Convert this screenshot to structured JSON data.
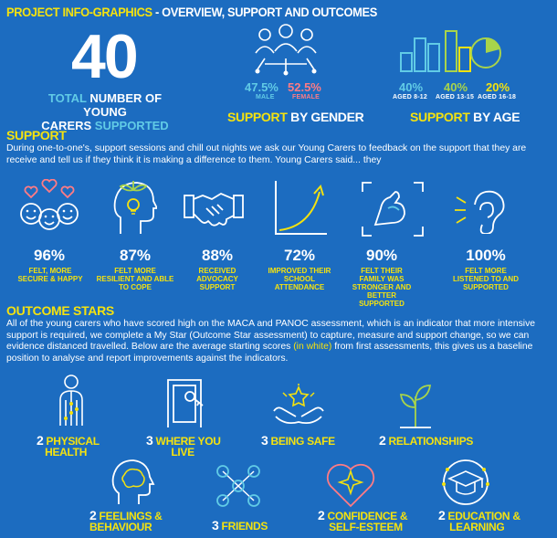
{
  "header": {
    "title_part1": "PROJECT INFO-GRAPHICS",
    "title_part2": " - OVERVIEW, SUPPORT AND OUTCOMES"
  },
  "total": {
    "number": "40",
    "word_total": "TOTAL",
    "line1_rest": " NUMBER OF YOUNG",
    "line2_a": "CARERS ",
    "line2_b": "SUPPORTED"
  },
  "gender": {
    "male_pct": "47.5%",
    "male_label": "MALE",
    "female_pct": "52.5%",
    "female_label": "FEMALE",
    "title_a": "SUPPORT ",
    "title_b": "BY GENDER"
  },
  "age": {
    "groups": [
      {
        "pct": "40%",
        "label": "AGED 8-12"
      },
      {
        "pct": "40%",
        "label": "AGED 13-15"
      },
      {
        "pct": "20%",
        "label": "AGED 16-18"
      }
    ],
    "title_a": "SUPPORT ",
    "title_b": "BY AGE"
  },
  "support": {
    "title": "SUPPORT",
    "para": "During one-to-one's, support sessions and chill out nights we ask our Young Carers to feedback on the support that they are receive and tell us if they think it is making a difference to them. Young Carers said... they",
    "stats": [
      {
        "pct": "96%",
        "label": "FELT, MORE SECURE & HAPPY",
        "icon": "smiley-faces-icon"
      },
      {
        "pct": "87%",
        "label": "FELT MORE RESILIENT AND ABLE TO COPE",
        "icon": "head-plant-icon"
      },
      {
        "pct": "88%",
        "label": "RECEIVED ADVOCACY SUPPORT",
        "icon": "handshake-icon"
      },
      {
        "pct": "72%",
        "label": "IMPROVED THEIR SCHOOL ATTENDANCE",
        "icon": "growth-curve-icon"
      },
      {
        "pct": "90%",
        "label": "FELT THEIR FAMILY WAS STRONGER AND BETTER SUPPORTED",
        "icon": "flexed-arm-icon"
      },
      {
        "pct": "100%",
        "label": "FELT MORE LISTENED TO AND SUPPORTED",
        "icon": "ear-icon"
      }
    ]
  },
  "outcome": {
    "title": "OUTCOME STARS",
    "para_a": "All of the young carers who have scored high on the MACA and PANOC assessment, which is an indicator that more intensive support is required, we complete a My Star (Outcome Star assessment) to capture, measure and support change, so we can evidence distanced travelled. Below are the average starting scores ",
    "para_b": "(in white)",
    "para_c": " from first assessments, this gives us a baseline position to analyse and report improvements against the indicators.",
    "stars": [
      {
        "score": "2",
        "label_1": "PHYSICAL",
        "label_2": "HEALTH",
        "icon": "body-icon"
      },
      {
        "score": "3",
        "label_1": "WHERE YOU",
        "label_2": "LIVE",
        "icon": "door-icon"
      },
      {
        "score": "3",
        "label_1": "BEING SAFE",
        "label_2": "",
        "icon": "hands-star-icon"
      },
      {
        "score": "2",
        "label_1": "RELATIONSHIPS",
        "label_2": "",
        "icon": "sprout-icon"
      },
      {
        "score": "2",
        "label_1": "FEELINGS &",
        "label_2": "BEHAVIOUR",
        "icon": "brain-head-icon"
      },
      {
        "score": "3",
        "label_1": "FRIENDS",
        "label_2": "",
        "icon": "network-people-icon"
      },
      {
        "score": "2",
        "label_1": "CONFIDENCE &",
        "label_2": "SELF-ESTEEM",
        "icon": "star-heart-icon"
      },
      {
        "score": "2",
        "label_1": "EDUCATION &",
        "label_2": "LEARNING",
        "icon": "graduation-cap-icon"
      }
    ]
  }
}
